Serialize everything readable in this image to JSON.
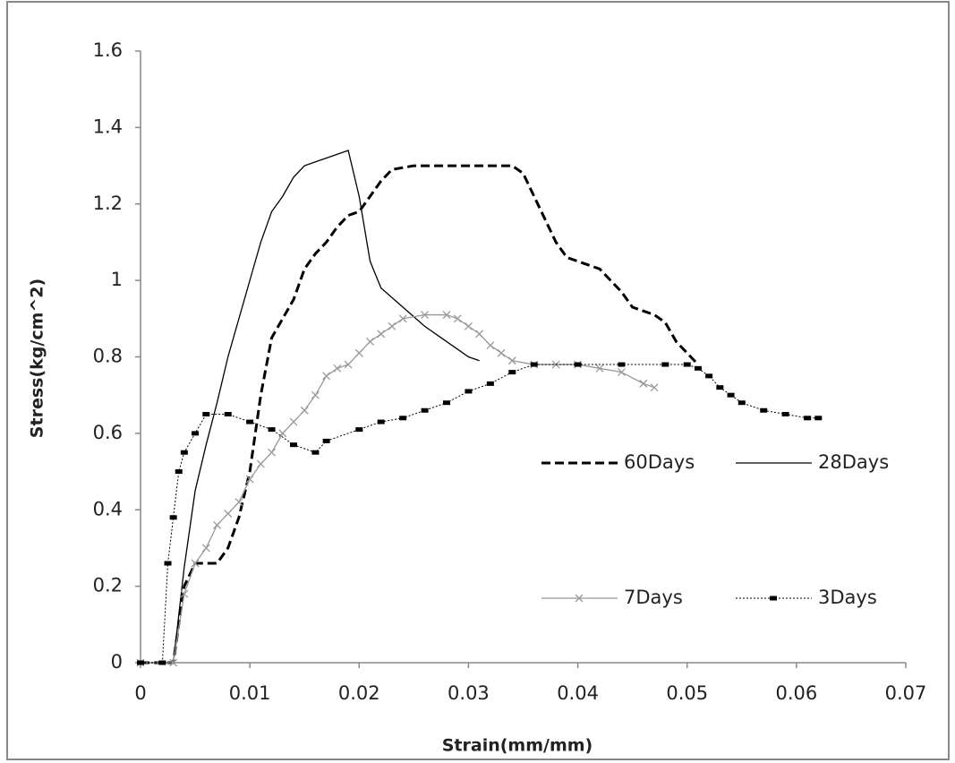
{
  "chart_data": {
    "type": "line",
    "x_label": "Strain(mm/mm)",
    "y_label": "Stress(kg/cm^2)",
    "xlim": [
      0,
      0.07
    ],
    "xticks": [
      0,
      0.01,
      0.02,
      0.03,
      0.04,
      0.05,
      0.06,
      0.07
    ],
    "ylim": [
      0,
      1.6
    ],
    "yticks": [
      0,
      0.2,
      0.4,
      0.6,
      0.8,
      1,
      1.2,
      1.4,
      1.6
    ],
    "grid": false,
    "legend": "right",
    "series": [
      {
        "name": "60Days",
        "color": "#000000",
        "line_style": "dashed",
        "marker": "none",
        "x": [
          0,
          0.003,
          0.004,
          0.005,
          0.007,
          0.008,
          0.009,
          0.01,
          0.011,
          0.012,
          0.013,
          0.014,
          0.015,
          0.016,
          0.017,
          0.018,
          0.019,
          0.02,
          0.021,
          0.022,
          0.023,
          0.025,
          0.03,
          0.034,
          0.035,
          0.036,
          0.037,
          0.038,
          0.039,
          0.04,
          0.042,
          0.043,
          0.044,
          0.045,
          0.047,
          0.048,
          0.049,
          0.05,
          0.051
        ],
        "values": [
          0,
          0,
          0.2,
          0.26,
          0.26,
          0.3,
          0.38,
          0.5,
          0.7,
          0.85,
          0.9,
          0.95,
          1.03,
          1.07,
          1.1,
          1.14,
          1.17,
          1.18,
          1.22,
          1.26,
          1.29,
          1.3,
          1.3,
          1.3,
          1.28,
          1.22,
          1.16,
          1.1,
          1.06,
          1.05,
          1.03,
          1.0,
          0.97,
          0.93,
          0.91,
          0.89,
          0.84,
          0.81,
          0.78
        ]
      },
      {
        "name": "28Days",
        "color": "#000000",
        "line_style": "solid",
        "marker": "none",
        "x": [
          0,
          0.003,
          0.004,
          0.005,
          0.006,
          0.007,
          0.008,
          0.009,
          0.01,
          0.011,
          0.012,
          0.013,
          0.014,
          0.015,
          0.016,
          0.017,
          0.018,
          0.019,
          0.02,
          0.021,
          0.022,
          0.024,
          0.026,
          0.028,
          0.03,
          0.031
        ],
        "values": [
          0,
          0,
          0.25,
          0.45,
          0.57,
          0.68,
          0.8,
          0.9,
          1.0,
          1.1,
          1.18,
          1.22,
          1.27,
          1.3,
          1.31,
          1.32,
          1.33,
          1.34,
          1.22,
          1.05,
          0.98,
          0.93,
          0.88,
          0.84,
          0.8,
          0.79
        ]
      },
      {
        "name": "7Days",
        "color": "#999999",
        "line_style": "solid",
        "marker": "x",
        "x": [
          0,
          0.003,
          0.004,
          0.005,
          0.006,
          0.007,
          0.008,
          0.009,
          0.01,
          0.011,
          0.012,
          0.013,
          0.014,
          0.015,
          0.016,
          0.017,
          0.018,
          0.019,
          0.02,
          0.021,
          0.022,
          0.023,
          0.024,
          0.026,
          0.028,
          0.029,
          0.03,
          0.031,
          0.032,
          0.033,
          0.034,
          0.036,
          0.038,
          0.04,
          0.042,
          0.044,
          0.046,
          0.047
        ],
        "values": [
          0,
          0,
          0.18,
          0.26,
          0.3,
          0.36,
          0.39,
          0.42,
          0.48,
          0.52,
          0.55,
          0.6,
          0.63,
          0.66,
          0.7,
          0.75,
          0.77,
          0.78,
          0.81,
          0.84,
          0.86,
          0.88,
          0.9,
          0.91,
          0.91,
          0.9,
          0.88,
          0.86,
          0.83,
          0.81,
          0.79,
          0.78,
          0.78,
          0.78,
          0.77,
          0.76,
          0.73,
          0.72
        ]
      },
      {
        "name": "3Days",
        "color": "#000000",
        "line_style": "dotted",
        "marker": "square",
        "x": [
          0,
          0.002,
          0.0025,
          0.003,
          0.0035,
          0.004,
          0.005,
          0.006,
          0.008,
          0.01,
          0.012,
          0.014,
          0.016,
          0.017,
          0.02,
          0.022,
          0.024,
          0.026,
          0.028,
          0.03,
          0.032,
          0.034,
          0.036,
          0.04,
          0.044,
          0.048,
          0.05,
          0.051,
          0.052,
          0.053,
          0.054,
          0.055,
          0.057,
          0.059,
          0.061,
          0.062
        ],
        "values": [
          0,
          0,
          0.26,
          0.38,
          0.5,
          0.55,
          0.6,
          0.65,
          0.65,
          0.63,
          0.61,
          0.57,
          0.55,
          0.58,
          0.61,
          0.63,
          0.64,
          0.66,
          0.68,
          0.71,
          0.73,
          0.76,
          0.78,
          0.78,
          0.78,
          0.78,
          0.78,
          0.77,
          0.75,
          0.72,
          0.7,
          0.68,
          0.66,
          0.65,
          0.64,
          0.64
        ]
      }
    ]
  }
}
